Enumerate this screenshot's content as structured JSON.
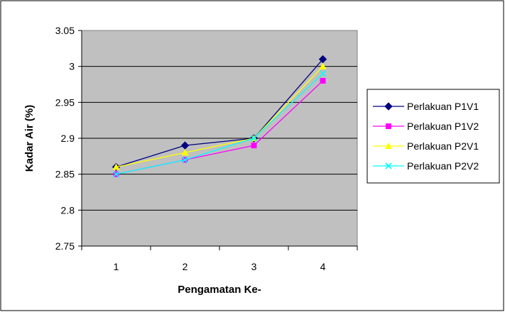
{
  "chart_data": {
    "type": "line",
    "title": "",
    "xlabel": "Pengamatan Ke-",
    "ylabel": "Kadar Air (%)",
    "categories": [
      "1",
      "2",
      "3",
      "4"
    ],
    "ylim": [
      2.75,
      3.05
    ],
    "yticks": [
      2.75,
      2.8,
      2.85,
      2.9,
      2.95,
      3,
      3.05
    ],
    "ytick_labels": [
      "2.75",
      "2.8",
      "2.85",
      "2.9",
      "2.95",
      "3",
      "3.05"
    ],
    "grid": true,
    "legend_position": "right",
    "plot_background": "#c0c0c0",
    "series": [
      {
        "name": "Perlakuan P1V1",
        "values": [
          2.86,
          2.89,
          2.9,
          3.01
        ],
        "color": "#000080",
        "marker": "diamond"
      },
      {
        "name": "Perlakuan P1V2",
        "values": [
          2.85,
          2.87,
          2.89,
          2.98
        ],
        "color": "#ff00ff",
        "marker": "square"
      },
      {
        "name": "Perlakuan P2V1",
        "values": [
          2.86,
          2.88,
          2.9,
          3.0
        ],
        "color": "#ffff00",
        "marker": "triangle"
      },
      {
        "name": "Perlakuan P2V2",
        "values": [
          2.85,
          2.87,
          2.9,
          2.99
        ],
        "color": "#00ffff",
        "marker": "x"
      }
    ]
  }
}
